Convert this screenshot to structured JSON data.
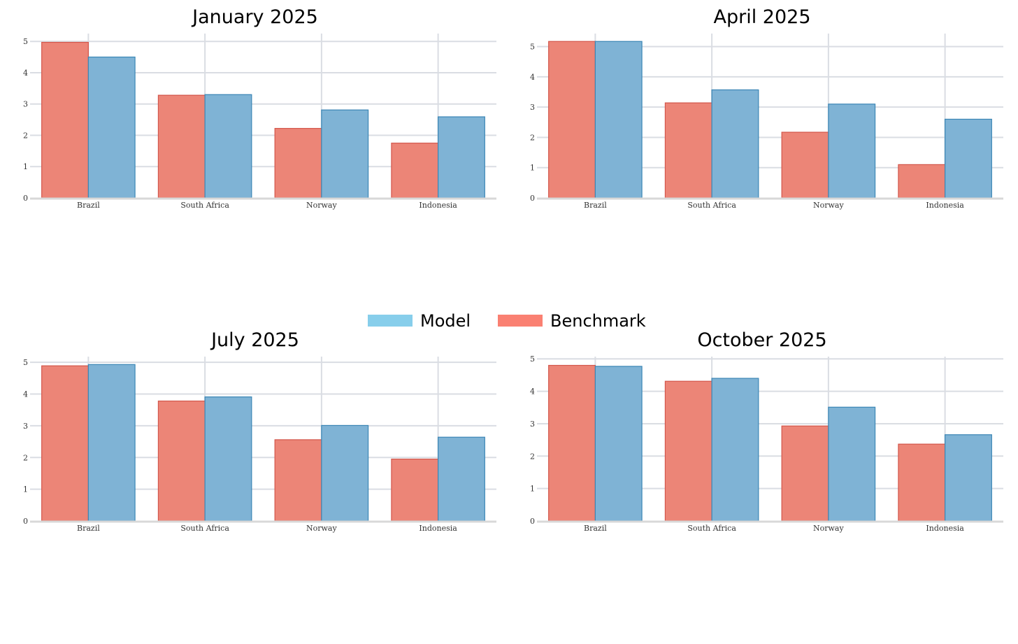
{
  "legend": [
    {
      "name": "Model",
      "color": "#87CEEB"
    },
    {
      "name": "Benchmark",
      "color": "#FA8072"
    }
  ],
  "colors": {
    "benchmark_fill": "#EC8577",
    "benchmark_stroke": "#D3574C",
    "model_fill": "#7FB3D5",
    "model_stroke": "#3B86B5",
    "grid": "#DADDE3",
    "axis": "#D8D8D8"
  },
  "chart_data": [
    {
      "type": "bar",
      "title": "January 2025",
      "categories": [
        "Brazil",
        "South Africa",
        "Norway",
        "Indonesia"
      ],
      "series": [
        {
          "name": "Benchmark",
          "values": [
            4.97,
            3.28,
            2.22,
            1.75
          ]
        },
        {
          "name": "Model",
          "values": [
            4.5,
            3.3,
            2.81,
            2.59
          ]
        }
      ],
      "ylim": [
        0,
        5.25
      ],
      "yticks": [
        0,
        1,
        2,
        3,
        4,
        5
      ],
      "grid": true
    },
    {
      "type": "bar",
      "title": "April 2025",
      "categories": [
        "Brazil",
        "South Africa",
        "Norway",
        "Indonesia"
      ],
      "series": [
        {
          "name": "Benchmark",
          "values": [
            5.17,
            3.14,
            2.17,
            1.1
          ]
        },
        {
          "name": "Model",
          "values": [
            5.17,
            3.57,
            3.1,
            2.6
          ]
        }
      ],
      "ylim": [
        0,
        5.43
      ],
      "yticks": [
        0,
        1,
        2,
        3,
        4,
        5
      ],
      "grid": true
    },
    {
      "type": "bar",
      "title": "July 2025",
      "categories": [
        "Brazil",
        "South Africa",
        "Norway",
        "Indonesia"
      ],
      "series": [
        {
          "name": "Benchmark",
          "values": [
            4.89,
            3.78,
            2.56,
            1.95
          ]
        },
        {
          "name": "Model",
          "values": [
            4.93,
            3.91,
            3.01,
            2.64
          ]
        }
      ],
      "ylim": [
        0,
        5.18
      ],
      "yticks": [
        0,
        1,
        2,
        3,
        4,
        5
      ],
      "grid": true
    },
    {
      "type": "bar",
      "title": "October 2025",
      "categories": [
        "Brazil",
        "South Africa",
        "Norway",
        "Indonesia"
      ],
      "series": [
        {
          "name": "Benchmark",
          "values": [
            4.8,
            4.31,
            2.93,
            2.37
          ]
        },
        {
          "name": "Model",
          "values": [
            4.77,
            4.4,
            3.51,
            2.66
          ]
        }
      ],
      "ylim": [
        0,
        5.07
      ],
      "yticks": [
        0,
        1,
        2,
        3,
        4,
        5
      ],
      "grid": true
    }
  ]
}
